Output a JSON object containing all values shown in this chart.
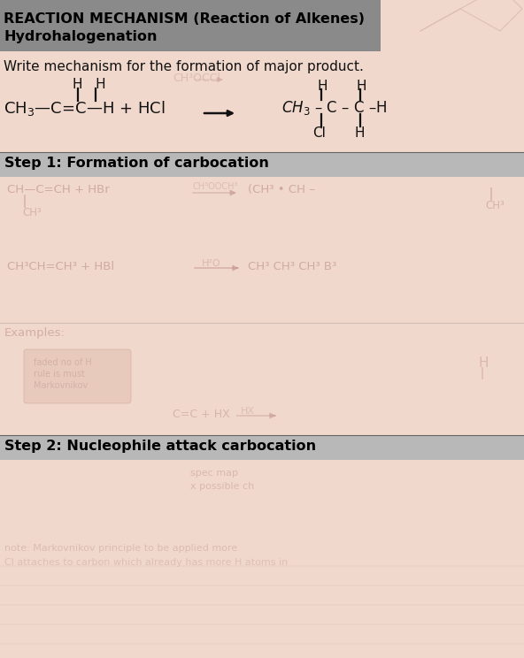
{
  "title_line1": "REACTION MECHANISM (Reaction of Alkenes)",
  "title_line2": "Hydrohalogenation",
  "subtitle": "Write mechanism for the formation of major product.",
  "bg_color": "#e8c8b8",
  "paper_color": "#f0d8cc",
  "title_bg": "#8a8a8a",
  "step_bg": "#b8b8b8",
  "step1_label": "Step 1: Formation of carbocation",
  "step2_label": "Step 2: Nucleophile attack carbocation",
  "font_color": "#111111",
  "faded_color": "#c09090",
  "faded_alpha": 0.65,
  "line_color": "#444444"
}
